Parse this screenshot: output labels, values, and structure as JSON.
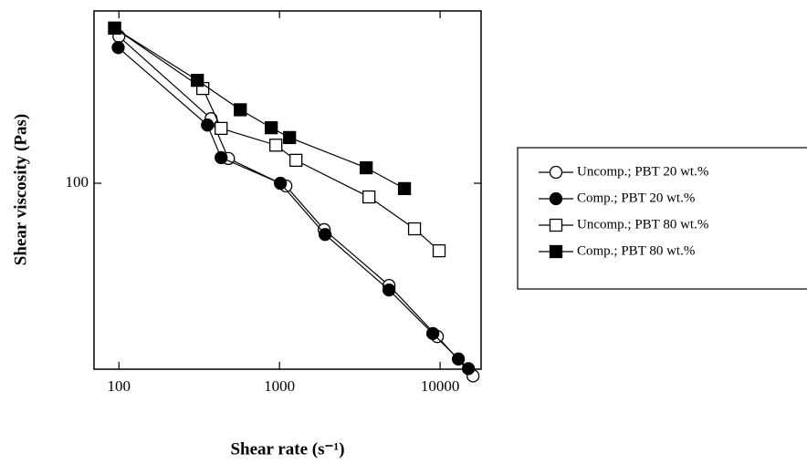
{
  "chart_data": {
    "type": "line",
    "x_label": "Shear rate (s⁻¹)",
    "y_label": "Shear viscosity (Pas)",
    "xscale": "log",
    "yscale": "log",
    "xlim": [
      70,
      18000
    ],
    "ylim": [
      18.7,
      473
    ],
    "xticks": [
      100,
      1000,
      10000
    ],
    "yticks": [
      100
    ],
    "legend": "right",
    "series": [
      {
        "name": "Uncomp.; PBT 20 wt.%",
        "color": "#000000",
        "marker": "circle",
        "filled": false,
        "x": [
          100,
          375,
          481,
          1096,
          1897,
          4808,
          9610,
          16040
        ],
        "values": [
          376,
          179,
          125,
          97.6,
          65.8,
          39.8,
          25.1,
          17.6
        ]
      },
      {
        "name": "Comp.; PBT 20 wt.%",
        "color": "#000000",
        "marker": "circle",
        "filled": true,
        "x": [
          99,
          356,
          433,
          1013,
          1923,
          4808,
          9010,
          13000,
          15000
        ],
        "values": [
          340,
          169,
          126,
          100,
          63,
          38.2,
          25.8,
          20.5,
          18.8
        ]
      },
      {
        "name": "Uncomp.; PBT 80 wt.%",
        "color": "#000000",
        "marker": "square",
        "filled": false,
        "x": [
          94,
          333,
          433,
          949,
          1266,
          3606,
          6930,
          9860
        ],
        "values": [
          405,
          235,
          164,
          141,
          123,
          88.4,
          66.3,
          54.4
        ]
      },
      {
        "name": "Comp.; PBT 80 wt.%",
        "color": "#000000",
        "marker": "square",
        "filled": true,
        "x": [
          94,
          308,
          570,
          889,
          1155,
          3467,
          6000
        ],
        "values": [
          405,
          253,
          194,
          165,
          151,
          115,
          95.3
        ]
      }
    ]
  }
}
